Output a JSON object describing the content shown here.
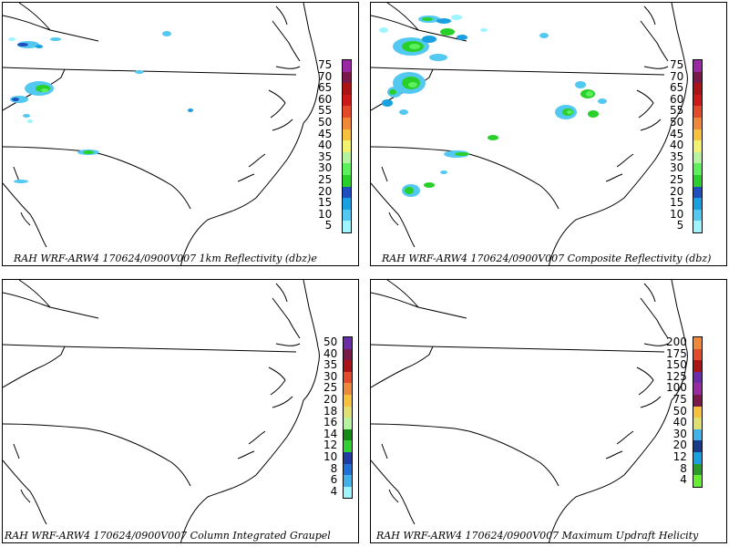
{
  "colors": {
    "reflectivity": [
      "#9ef5ff",
      "#53c9f2",
      "#18a0e0",
      "#1f4fbf",
      "#2ad02a",
      "#5cf05c",
      "#b6f3a0",
      "#f2f270",
      "#f7c23b",
      "#f0883a",
      "#e24a2a",
      "#cc1a1a",
      "#aa1414",
      "#7a1a4a",
      "#9a2aa2",
      "#ffffff"
    ],
    "graupel": [
      "#9ef5ff",
      "#3fb2ec",
      "#1e6fd6",
      "#203aa6",
      "#2fd02f",
      "#138a13",
      "#b6f3a0",
      "#e0e070",
      "#f7c23b",
      "#f0883a",
      "#e24a2a",
      "#aa1414",
      "#7a1a4a",
      "#6a2ca8"
    ],
    "helicity": [
      "#66ee33",
      "#2a9a2a",
      "#18a0e0",
      "#1a3a8a",
      "#3fb2ec",
      "#e0e070",
      "#f7c23b",
      "#7a1a4a",
      "#9a2aa2",
      "#6a2ca8",
      "#aa1414",
      "#e24a2a",
      "#f0883a"
    ]
  },
  "panels": [
    {
      "name": "1km-reflectivity",
      "caption": "RAH WRF-ARW4 170624/0900V007  1km Reflectivity (dbz)e",
      "scale_labels": [
        "75",
        "70",
        "65",
        "60",
        "55",
        "50",
        "45",
        "40",
        "35",
        "30",
        "25",
        "20",
        "15",
        "10",
        "5"
      ]
    },
    {
      "name": "composite-reflectivity",
      "caption": "RAH WRF-ARW4 170624/0900V007  Composite Reflectivity (dbz)",
      "scale_labels": [
        "75",
        "70",
        "65",
        "60",
        "55",
        "50",
        "45",
        "40",
        "35",
        "30",
        "25",
        "20",
        "15",
        "10",
        "5"
      ]
    },
    {
      "name": "column-integrated-graupel",
      "caption": "RAH WRF-ARW4 170624/0900V007  Column Integrated Graupel",
      "scale_labels": [
        "50",
        "40",
        "35",
        "30",
        "25",
        "20",
        "18",
        "16",
        "14",
        "12",
        "10",
        "8",
        "6",
        "4"
      ]
    },
    {
      "name": "maximum-updraft-helicity",
      "caption": "RAH WRF-ARW4 170624/0900V007  Maximum Updraft Helicity",
      "scale_labels": [
        "200",
        "175",
        "150",
        "125",
        "100",
        "75",
        "50",
        "40",
        "30",
        "20",
        "12",
        "8",
        "4"
      ]
    }
  ]
}
